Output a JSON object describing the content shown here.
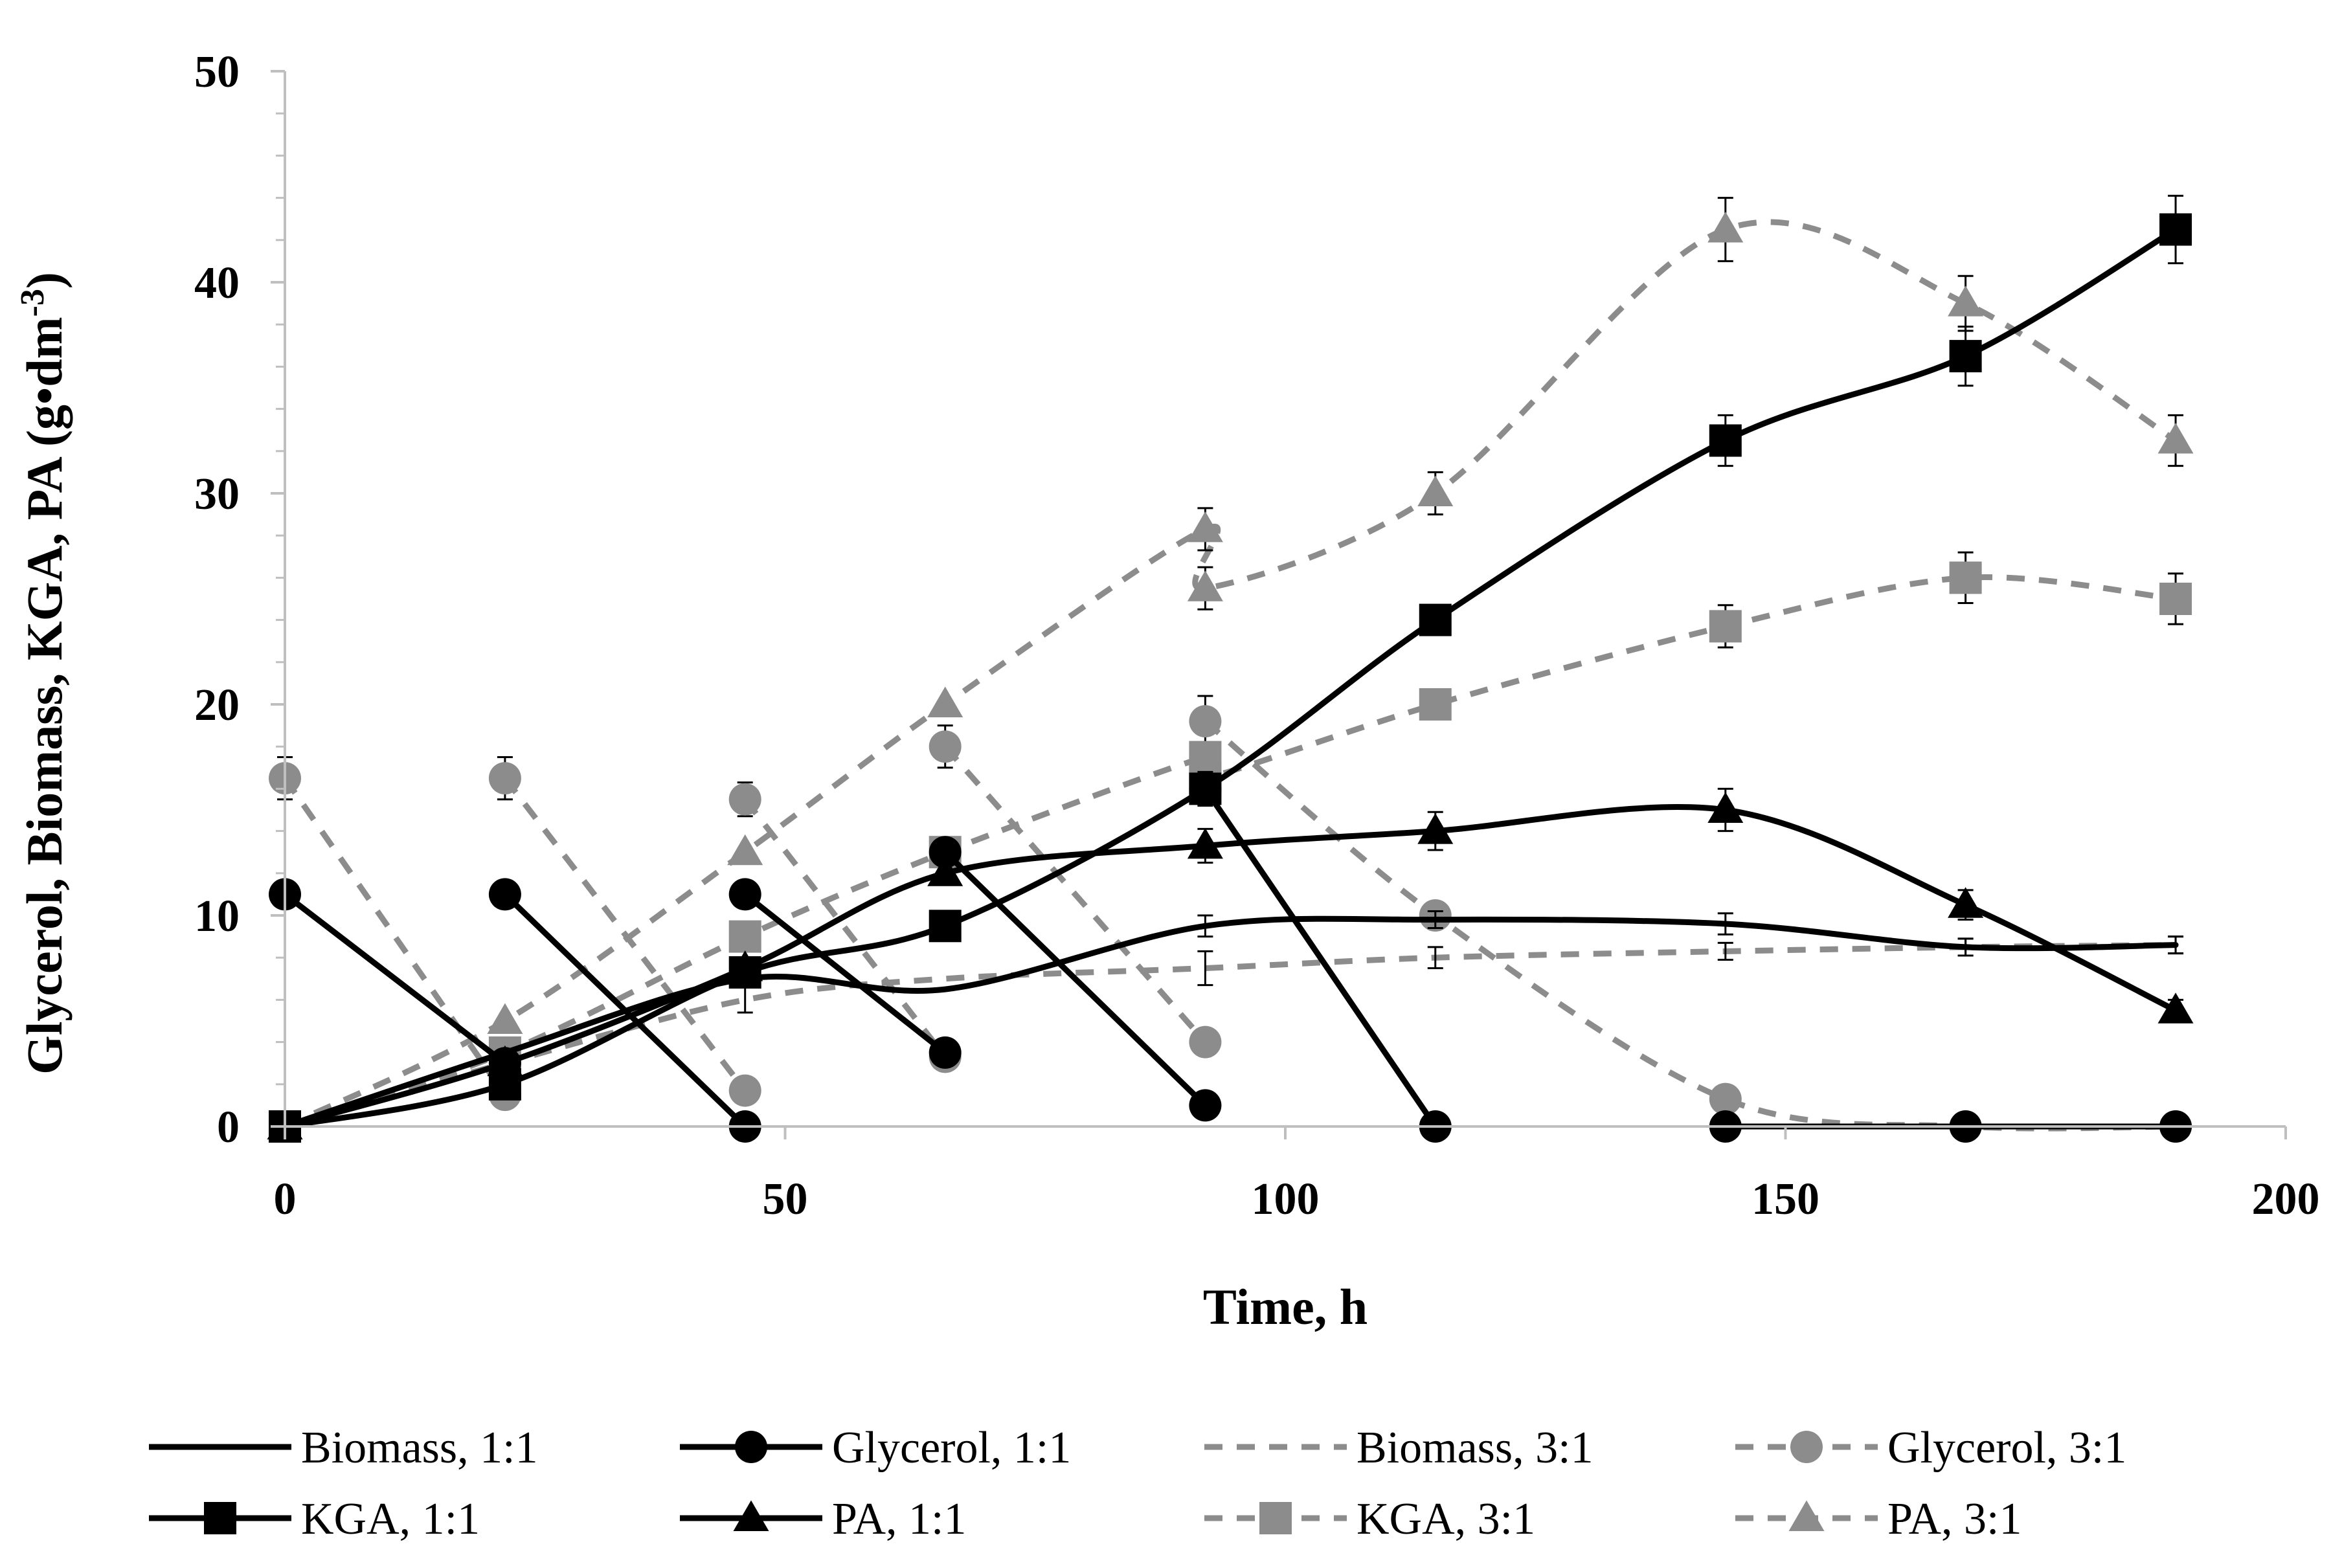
{
  "chart_data": {
    "type": "scatter",
    "title": "",
    "xlabel": "Time, h",
    "ylabel_main": "Glycerol, Biomass, KGA, PA (g•dm",
    "ylabel_sup": "-3",
    "ylabel_tail": ")",
    "xlim": [
      0,
      200
    ],
    "ylim": [
      0,
      50
    ],
    "x_ticks": [
      "0",
      "50",
      "100",
      "150",
      "200"
    ],
    "y_ticks": [
      "0",
      "10",
      "20",
      "30",
      "40",
      "50"
    ],
    "grid": false,
    "legend_position": "bottom",
    "colors": {
      "black": "#000000",
      "gray": "#8c8c8c"
    },
    "series": [
      {
        "name": "Biomass, 1:1",
        "style": "solid",
        "color": "black",
        "marker": "none",
        "x": [
          0,
          22,
          46,
          66,
          92,
          115,
          144,
          168,
          189
        ],
        "y": [
          0,
          3.5,
          7,
          6.5,
          9.5,
          9.8,
          9.6,
          8.5,
          8.6
        ],
        "err": [
          0,
          0,
          0,
          0,
          0.5,
          0.4,
          0.5,
          0.4,
          0.4
        ]
      },
      {
        "name": "Glycerol, 1:1",
        "style": "solid",
        "color": "black",
        "marker": "circle",
        "segments": [
          {
            "x": [
              0,
              22
            ],
            "y": [
              11,
              3
            ]
          },
          {
            "x": [
              22,
              46
            ],
            "y": [
              11,
              0
            ]
          },
          {
            "x": [
              46,
              66
            ],
            "y": [
              11,
              3.5
            ]
          },
          {
            "x": [
              66,
              92
            ],
            "y": [
              13,
              1
            ]
          },
          {
            "x": [
              92,
              115
            ],
            "y": [
              16,
              0
            ]
          },
          {
            "x": [
              144,
              168,
              189
            ],
            "y": [
              0,
              0,
              0
            ]
          }
        ]
      },
      {
        "name": "Biomass, 3:1",
        "style": "dashed",
        "color": "gray",
        "marker": "none",
        "x": [
          0,
          22,
          46,
          66,
          92,
          115,
          144,
          168,
          189
        ],
        "y": [
          0,
          3,
          6,
          7,
          7.5,
          8,
          8.3,
          8.5,
          8.6
        ],
        "err": [
          0,
          0,
          0.6,
          0,
          0.8,
          0.5,
          0.4,
          0.4,
          0.4
        ]
      },
      {
        "name": "Glycerol, 3:1",
        "style": "dashed",
        "color": "gray",
        "marker": "circle",
        "segments": [
          {
            "x": [
              0,
              22
            ],
            "y": [
              16.5,
              1.5
            ]
          },
          {
            "x": [
              22,
              46
            ],
            "y": [
              16.5,
              1.7
            ]
          },
          {
            "x": [
              46,
              66
            ],
            "y": [
              15.5,
              3.3
            ]
          },
          {
            "x": [
              66,
              92
            ],
            "y": [
              18,
              4
            ]
          },
          {
            "x": [
              92,
              115,
              144,
              168,
              189
            ],
            "y": [
              19.2,
              10,
              1.3,
              0,
              0
            ]
          }
        ],
        "err_points": [
          [
            0,
            16.5,
            1.0
          ],
          [
            22,
            16.5,
            1.0
          ],
          [
            46,
            15.5,
            0.8
          ],
          [
            66,
            18,
            1.0
          ],
          [
            92,
            19.2,
            1.2
          ]
        ]
      },
      {
        "name": "KGA, 1:1",
        "style": "solid",
        "color": "black",
        "marker": "square",
        "x": [
          0,
          22,
          46,
          66,
          92,
          115,
          144,
          168,
          189
        ],
        "y": [
          0,
          2,
          7.3,
          9.5,
          16,
          24,
          32.5,
          36.5,
          42.5
        ],
        "err": [
          0,
          0,
          0,
          0,
          0.8,
          0,
          1.2,
          1.4,
          1.6
        ]
      },
      {
        "name": "PA, 1:1",
        "style": "solid",
        "color": "black",
        "marker": "triangle",
        "x": [
          0,
          22,
          46,
          66,
          92,
          115,
          144,
          168,
          189
        ],
        "y": [
          0,
          3,
          7.5,
          12,
          13.3,
          14,
          15,
          10.5,
          5.5
        ],
        "err": [
          0,
          0,
          0,
          0,
          0.8,
          0.9,
          1.0,
          0.7,
          0.5
        ]
      },
      {
        "name": "KGA, 3:1",
        "style": "dashed",
        "color": "gray",
        "marker": "square",
        "x": [
          0,
          22,
          46,
          66,
          92,
          92,
          115,
          144,
          168,
          189
        ],
        "y": [
          0,
          3.5,
          9,
          13,
          17.5,
          16.5,
          20,
          23.7,
          26,
          25
        ],
        "err": [
          0,
          0,
          0,
          0,
          0,
          0,
          0,
          1.0,
          1.2,
          1.2
        ]
      },
      {
        "name": "PA, 3:1",
        "style": "dashed",
        "color": "gray",
        "marker": "triangle",
        "x": [
          0,
          22,
          46,
          66,
          92,
          92,
          115,
          144,
          168,
          189
        ],
        "y": [
          0,
          5,
          13,
          20,
          28.3,
          25.5,
          30,
          42.5,
          39,
          32.5
        ],
        "err": [
          0,
          0,
          0,
          0,
          1.0,
          1.0,
          1.0,
          1.5,
          1.3,
          1.2
        ]
      }
    ]
  }
}
